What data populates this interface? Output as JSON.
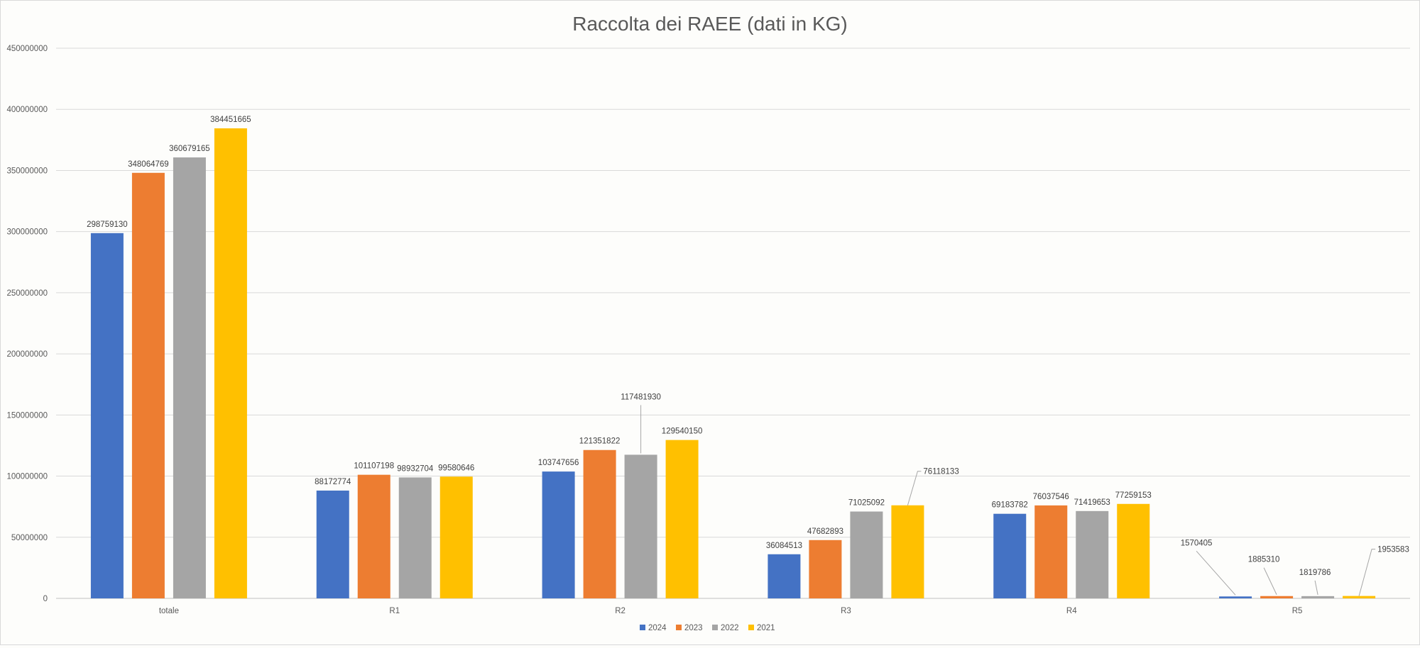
{
  "chart_data": {
    "type": "bar",
    "title": "Raccolta dei RAEE (dati in KG)",
    "xlabel": "",
    "ylabel": "",
    "categories": [
      "totale",
      "R1",
      "R2",
      "R3",
      "R4",
      "R5"
    ],
    "ylim": [
      0,
      450000000
    ],
    "yticks": [
      0,
      50000000,
      100000000,
      150000000,
      200000000,
      250000000,
      300000000,
      350000000,
      400000000,
      450000000
    ],
    "grid": true,
    "legend_position": "bottom",
    "series": [
      {
        "name": "2024",
        "color": "#4472C4",
        "values": [
          298759130,
          88172774,
          103747656,
          36084513,
          69183782,
          1570405
        ]
      },
      {
        "name": "2023",
        "color": "#ED7D31",
        "values": [
          348064769,
          101107198,
          121351822,
          47682893,
          76037546,
          1885310
        ]
      },
      {
        "name": "2022",
        "color": "#A5A5A5",
        "values": [
          360679165,
          98932704,
          117481930,
          71025092,
          71419653,
          1819786
        ]
      },
      {
        "name": "2021",
        "color": "#FFC000",
        "values": [
          384451665,
          99580646,
          129540150,
          76118133,
          77259153,
          1953583
        ]
      }
    ]
  }
}
